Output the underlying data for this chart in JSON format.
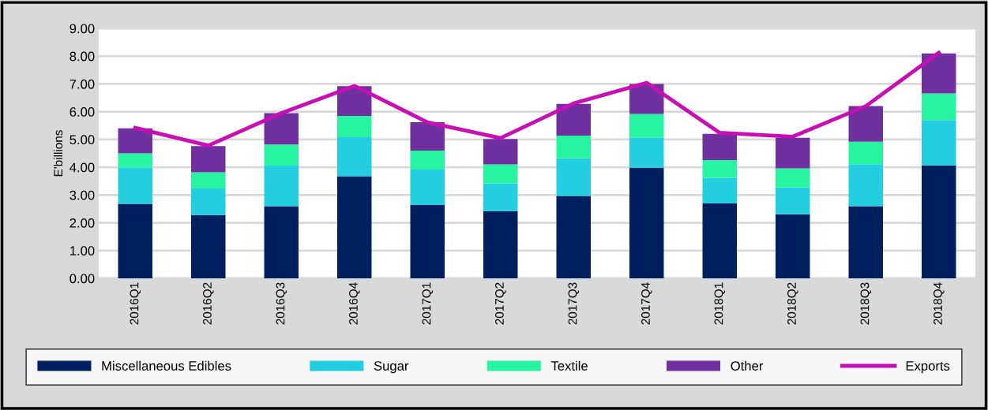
{
  "chart_data": {
    "type": "bar",
    "stacked": true,
    "ylabel": "E'billions",
    "categories": [
      "2016Q1",
      "2016Q2",
      "2016Q3",
      "2016Q4",
      "2017Q1",
      "2017Q2",
      "2017Q3",
      "2017Q4",
      "2018Q1",
      "2018Q2",
      "2018Q3",
      "2018Q4"
    ],
    "series": [
      {
        "name": "Miscellaneous Edibles",
        "color": "#001f5f",
        "values": [
          2.68,
          2.28,
          2.6,
          3.68,
          2.64,
          2.42,
          2.97,
          3.98,
          2.7,
          2.31,
          2.6,
          4.07
        ]
      },
      {
        "name": "Sugar",
        "color": "#22cee0",
        "values": [
          1.3,
          0.96,
          1.46,
          1.4,
          1.28,
          1.0,
          1.35,
          1.08,
          0.92,
          0.97,
          1.51,
          1.63
        ]
      },
      {
        "name": "Textile",
        "color": "#27f4a1",
        "values": [
          0.52,
          0.58,
          0.76,
          0.77,
          0.68,
          0.68,
          0.82,
          0.86,
          0.64,
          0.68,
          0.81,
          0.96
        ]
      },
      {
        "name": "Other",
        "color": "#7030a0",
        "values": [
          0.9,
          0.94,
          1.13,
          1.07,
          1.02,
          0.92,
          1.14,
          1.08,
          0.94,
          1.1,
          1.28,
          1.44
        ]
      },
      {
        "name": "Exports",
        "type": "line",
        "color": "#c80fb4",
        "values": [
          5.42,
          4.78,
          5.95,
          6.93,
          5.62,
          5.05,
          6.3,
          7.04,
          5.24,
          5.1,
          6.2,
          8.12
        ]
      }
    ],
    "ylim": [
      0,
      9
    ],
    "yticks": [
      {
        "value": 0,
        "label": "0.00"
      },
      {
        "value": 1,
        "label": "1.00"
      },
      {
        "value": 2,
        "label": "2.00"
      },
      {
        "value": 3,
        "label": "3.00"
      },
      {
        "value": 4,
        "label": "4.00"
      },
      {
        "value": 5,
        "label": "5.00"
      },
      {
        "value": 6,
        "label": "6.00"
      },
      {
        "value": 7,
        "label": "7.00"
      },
      {
        "value": 8,
        "label": "8.00"
      },
      {
        "value": 9,
        "label": "9.00"
      }
    ],
    "grid": "y",
    "legend": "bottom",
    "marker": "none"
  }
}
